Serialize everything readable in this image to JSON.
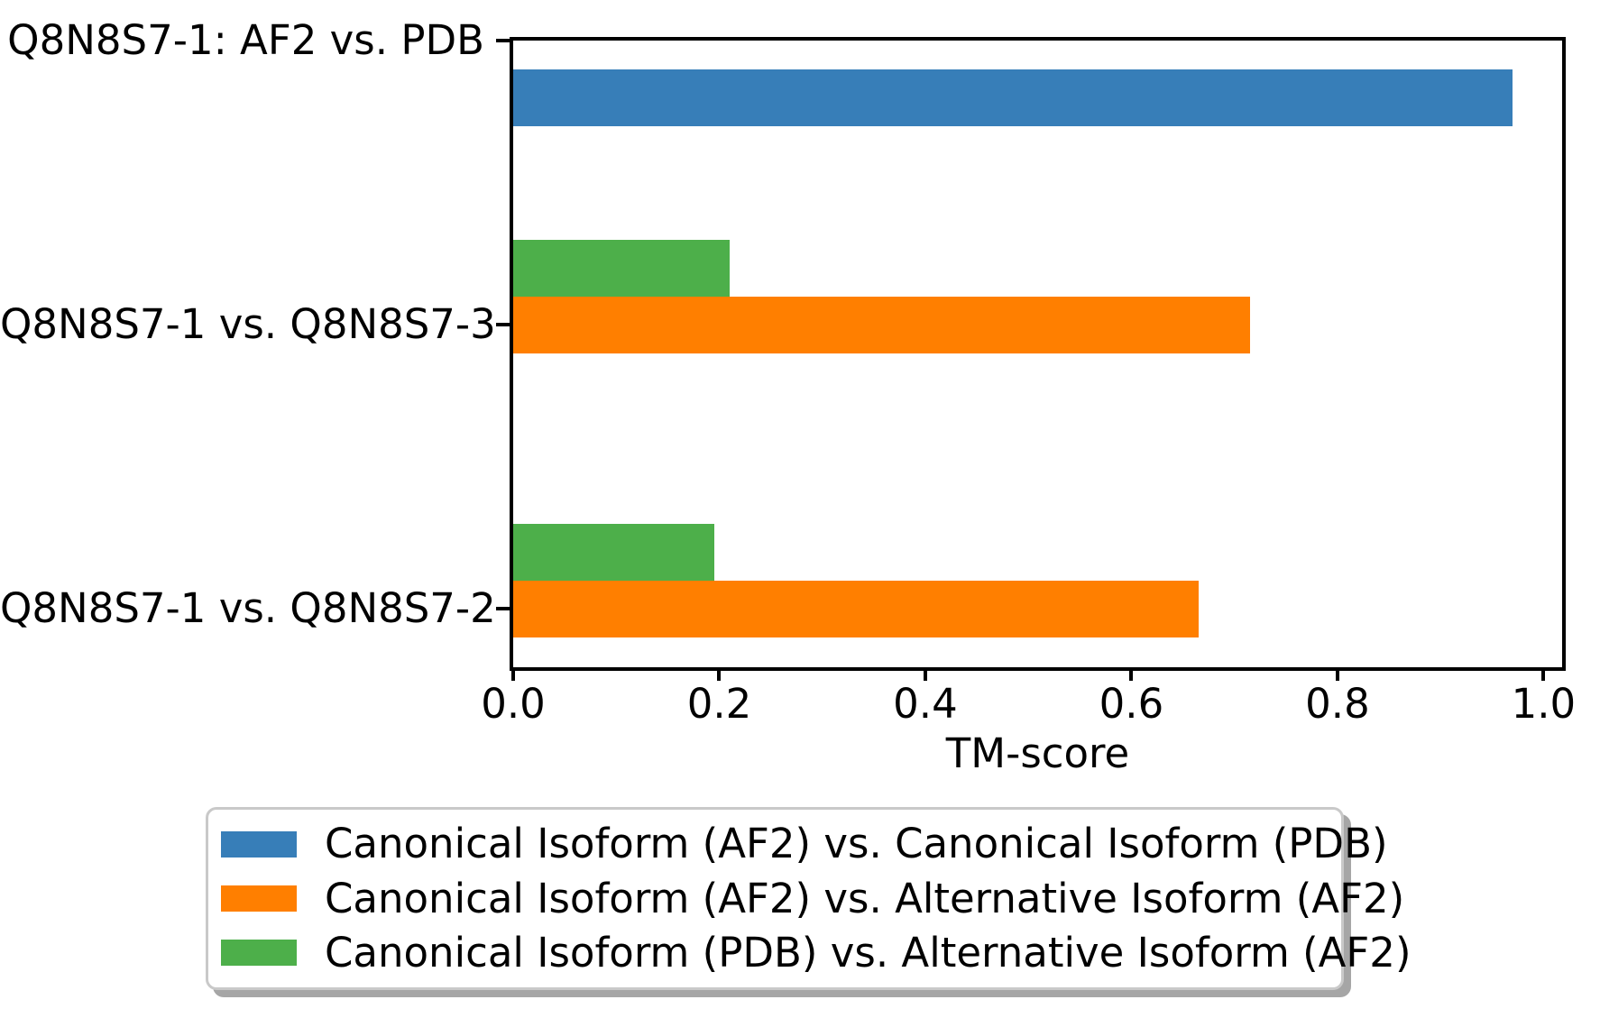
{
  "chart_data": {
    "type": "bar",
    "orientation": "horizontal",
    "title": "",
    "xlabel": "TM-score",
    "ylabel": "",
    "xlim": [
      0,
      1.018
    ],
    "xticks": [
      0.0,
      0.2,
      0.4,
      0.6,
      0.8,
      1.0
    ],
    "grid": false,
    "legend_position": "below-axes",
    "categories": [
      "Q8N8S7-1: AF2 vs. PDB",
      "Q8N8S7-1 vs. Q8N8S7-3",
      "Q8N8S7-1 vs. Q8N8S7-2"
    ],
    "series": [
      {
        "name": "Canonical Isoform (AF2) vs. Canonical Isoform (PDB)",
        "color": "#377eb8",
        "values": [
          0.97,
          null,
          null
        ]
      },
      {
        "name": "Canonical Isoform (AF2) vs. Alternative Isoform (AF2)",
        "color": "#ff7f00",
        "values": [
          null,
          0.715,
          0.665
        ]
      },
      {
        "name": "Canonical Isoform (PDB) vs. Alternative Isoform (AF2)",
        "color": "#4daf4a",
        "values": [
          null,
          0.21,
          0.195
        ]
      }
    ],
    "bars": [
      {
        "category": 0,
        "series": 0,
        "slot": 1,
        "value": 0.97
      },
      {
        "category": 1,
        "series": 2,
        "slot": -1,
        "value": 0.21
      },
      {
        "category": 1,
        "series": 1,
        "slot": 0,
        "value": 0.715
      },
      {
        "category": 2,
        "series": 2,
        "slot": -1,
        "value": 0.195
      },
      {
        "category": 2,
        "series": 1,
        "slot": 0,
        "value": 0.665
      }
    ]
  }
}
